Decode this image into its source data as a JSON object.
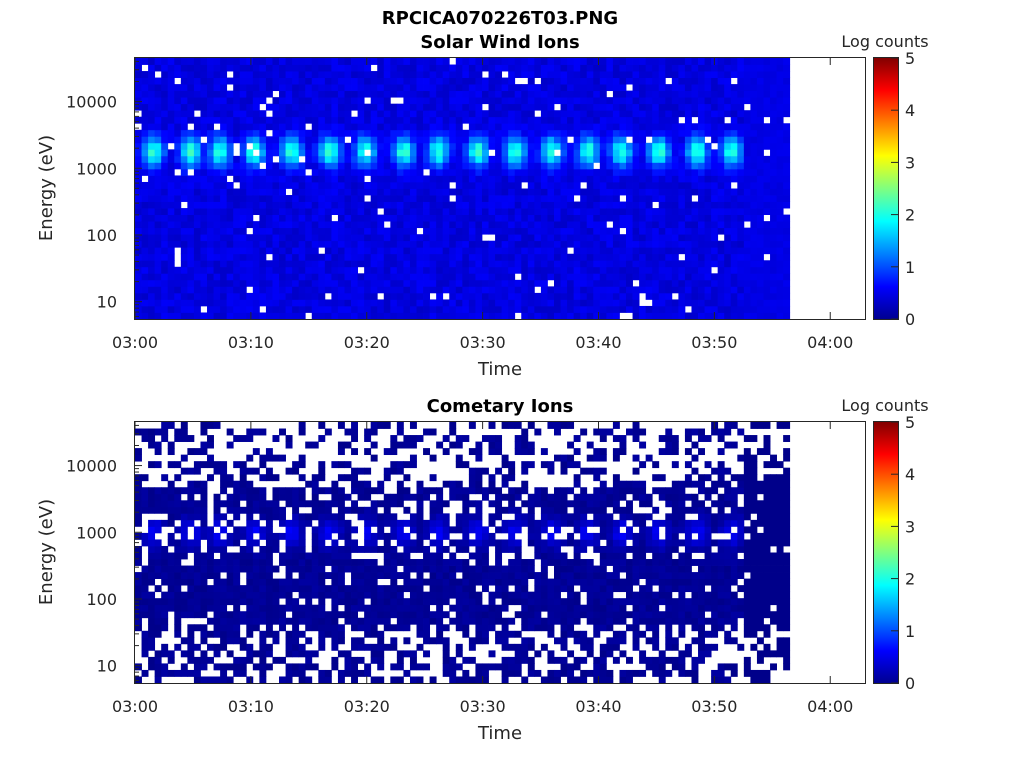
{
  "figure_title": "RPCICA070226T03.PNG",
  "chart_data": [
    {
      "type": "heatmap",
      "title": "Solar Wind Ions",
      "xlabel": "Time",
      "ylabel": "Energy (eV)",
      "x_ticks": [
        "03:00",
        "03:10",
        "03:20",
        "03:30",
        "03:40",
        "03:50",
        "04:00"
      ],
      "x_range_minutes": [
        0,
        63
      ],
      "data_end_minute": 56.5,
      "y_ticks": [
        "10",
        "100",
        "1000",
        "10000"
      ],
      "y_scale": "log",
      "y_range": [
        5.5,
        45000
      ],
      "colorbar": {
        "label": "Log counts",
        "ticks": [
          "0",
          "1",
          "2",
          "3",
          "4",
          "5"
        ],
        "range": [
          0,
          5
        ],
        "colormap": "jet"
      },
      "pattern": "periodic pulses ~3.2 min apart with peak ~2 log counts near 1500-2500 eV; background ~0.3-0.6",
      "pulse_times_min": [
        1.6,
        4.8,
        7.3,
        10.3,
        13.5,
        16.8,
        19.9,
        23.2,
        26.2,
        29.6,
        32.8,
        36.0,
        39.1,
        42.0,
        45.2,
        48.5,
        51.5
      ]
    },
    {
      "type": "heatmap",
      "title": "Cometary Ions",
      "xlabel": "Time",
      "ylabel": "Energy (eV)",
      "x_ticks": [
        "03:00",
        "03:10",
        "03:20",
        "03:30",
        "03:40",
        "03:50",
        "04:00"
      ],
      "x_range_minutes": [
        0,
        63
      ],
      "data_end_minute": 56.5,
      "y_ticks": [
        "10",
        "100",
        "1000",
        "10000"
      ],
      "y_scale": "log",
      "y_range": [
        5.5,
        45000
      ],
      "colorbar": {
        "label": "Log counts",
        "ticks": [
          "0",
          "1",
          "2",
          "3",
          "4",
          "5"
        ],
        "range": [
          0,
          5
        ],
        "colormap": "jet"
      },
      "pattern": "sparse low counts (~0-0.8 log counts) with many empty (white) bins; weak pulses near 1000 eV"
    }
  ]
}
